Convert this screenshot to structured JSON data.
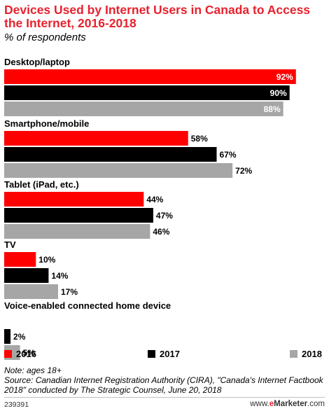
{
  "header": {
    "title": "Devices Used by Internet Users in Canada to Access the Internet, 2016-2018",
    "subtitle": "% of respondents"
  },
  "colors": {
    "s2016": "#ff0000",
    "s2017": "#000000",
    "s2018": "#a6a6a6",
    "title": "#e8212e"
  },
  "legend": {
    "items": [
      "2016",
      "2017",
      "2018"
    ]
  },
  "footer": {
    "note": "Note: ages 18+",
    "source": "Source: Canadian Internet Registration Authority (CIRA), \"Canada's Internet Factbook 2018\" conducted by The Strategic Counsel, June 20, 2018",
    "chart_id": "239391",
    "brand_prefix": "www.",
    "brand_e": "e",
    "brand_main": "Marketer",
    "brand_suffix": ".com"
  },
  "chart_data": {
    "type": "bar",
    "orientation": "horizontal",
    "title": "Devices Used by Internet Users in Canada to Access the Internet, 2016-2018",
    "subtitle": "% of respondents",
    "categories": [
      "Desktop/laptop",
      "Smartphone/mobile",
      "Tablet (iPad, etc.)",
      "TV",
      "Voice-enabled connected home device"
    ],
    "series": [
      {
        "name": "2016",
        "values": [
          92,
          58,
          44,
          10,
          null
        ]
      },
      {
        "name": "2017",
        "values": [
          90,
          67,
          47,
          14,
          2
        ]
      },
      {
        "name": "2018",
        "values": [
          88,
          72,
          46,
          17,
          5
        ]
      }
    ],
    "value_suffix": "%",
    "xlim": [
      0,
      100
    ],
    "grid": false,
    "legend_position": "bottom"
  }
}
